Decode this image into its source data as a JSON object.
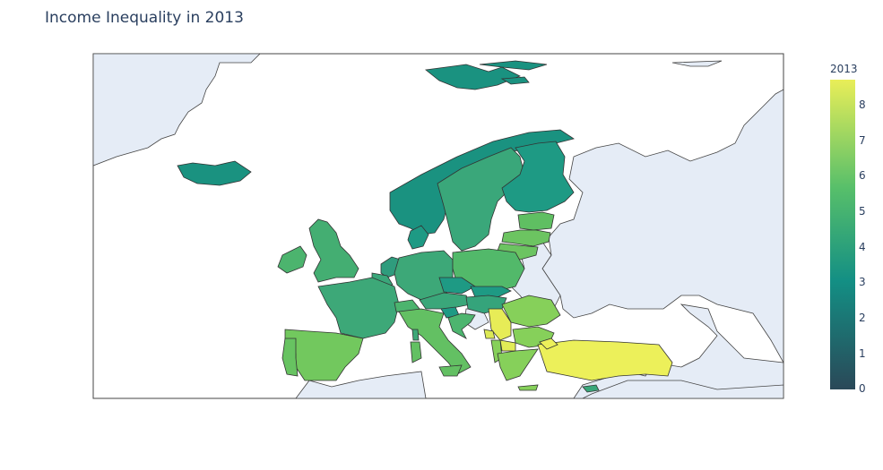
{
  "title": "Income Inequality in 2013",
  "colorbar": {
    "title": "2013",
    "ticks": [
      "0",
      "1",
      "2",
      "3",
      "4",
      "5",
      "6",
      "7",
      "8"
    ],
    "min": 0,
    "max": 8.7,
    "colorscale": [
      "#440154",
      "#2a788e",
      "#22a884",
      "#7ad151",
      "#fde725"
    ]
  },
  "colors": {
    "land": "#e5ecf6",
    "ocean": "#ffffff",
    "border": "#444444"
  },
  "chart_data": {
    "type": "choropleth",
    "region": "Europe",
    "values": {
      "Iceland": 3.0,
      "Norway": 3.0,
      "Sweden": 3.6,
      "Finland": 3.2,
      "Denmark": 3.2,
      "Estonia": 5.5,
      "Latvia": 6.0,
      "Lithuania": 6.1,
      "Ireland": 4.5,
      "United Kingdom": 4.3,
      "Netherlands": 3.6,
      "Belgium": 3.8,
      "Luxembourg": 4.0,
      "Germany": 4.0,
      "Poland": 4.9,
      "France": 3.9,
      "Switzerland": 4.5,
      "Austria": 3.9,
      "Czech Republic": 3.0,
      "Slovakia": 3.1,
      "Hungary": 3.6,
      "Slovenia": 3.0,
      "Croatia": 4.6,
      "Italy": 5.7,
      "Spain": 6.3,
      "Portugal": 5.9,
      "Serbia": 8.5,
      "Montenegro": 8.0,
      "Romania": 6.5,
      "Bulgaria": 6.6,
      "North Macedonia": 8.3,
      "Greece": 6.6,
      "Turkey": 8.7,
      "Cyprus": 4.6,
      "Malta": 4.4
    }
  }
}
